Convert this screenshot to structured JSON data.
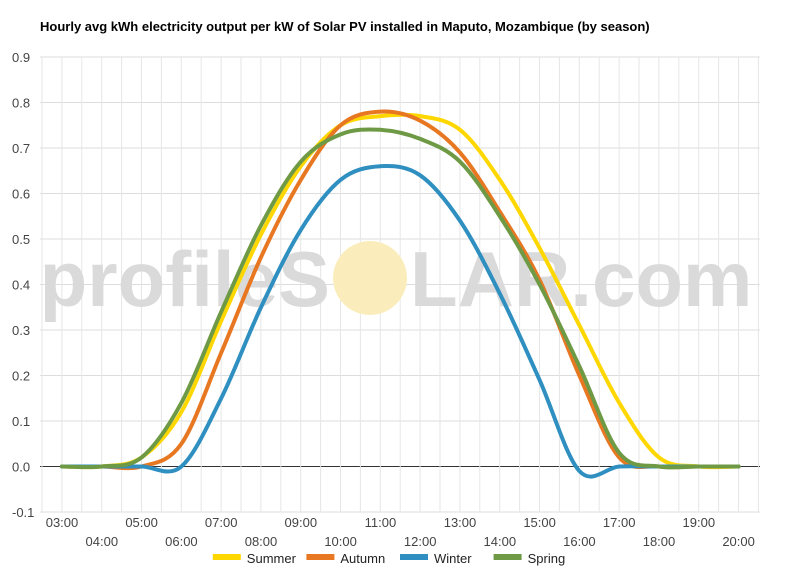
{
  "watermark": {
    "left": "profileS",
    "right": "LAR.com"
  },
  "chart_data": {
    "type": "line",
    "title": "Hourly avg kWh electricity output per kW of Solar PV installed in Maputo, Mozambique (by season)",
    "xlabel": "",
    "ylabel": "",
    "ylim": [
      -0.1,
      0.9
    ],
    "yticks": [
      "0.9",
      "0.8",
      "0.7",
      "0.6",
      "0.5",
      "0.4",
      "0.3",
      "0.2",
      "0.1",
      "0.0",
      "-0.1"
    ],
    "categories": [
      "03:00",
      "04:00",
      "05:00",
      "06:00",
      "07:00",
      "08:00",
      "09:00",
      "10:00",
      "11:00",
      "12:00",
      "13:00",
      "14:00",
      "15:00",
      "16:00",
      "17:00",
      "18:00",
      "19:00",
      "20:00"
    ],
    "grid": true,
    "legend_position": "bottom",
    "series": [
      {
        "name": "Summer",
        "color": "#ffd700",
        "values": [
          0.0,
          0.0,
          0.02,
          0.12,
          0.32,
          0.51,
          0.66,
          0.75,
          0.77,
          0.77,
          0.74,
          0.63,
          0.48,
          0.31,
          0.14,
          0.02,
          0.0,
          0.0
        ]
      },
      {
        "name": "Autumn",
        "color": "#e87722",
        "values": [
          0.0,
          0.0,
          0.0,
          0.05,
          0.25,
          0.46,
          0.63,
          0.75,
          0.78,
          0.76,
          0.69,
          0.56,
          0.41,
          0.2,
          0.02,
          0.0,
          0.0,
          0.0
        ]
      },
      {
        "name": "Winter",
        "color": "#2e8fc0",
        "values": [
          0.0,
          0.0,
          0.0,
          0.0,
          0.15,
          0.35,
          0.52,
          0.63,
          0.66,
          0.64,
          0.54,
          0.38,
          0.19,
          -0.01,
          0.0,
          0.0,
          0.0,
          0.0
        ]
      },
      {
        "name": "Spring",
        "color": "#6f9a45",
        "values": [
          0.0,
          0.0,
          0.02,
          0.14,
          0.34,
          0.53,
          0.67,
          0.73,
          0.74,
          0.72,
          0.67,
          0.55,
          0.4,
          0.22,
          0.03,
          0.0,
          0.0,
          0.0
        ]
      }
    ]
  }
}
